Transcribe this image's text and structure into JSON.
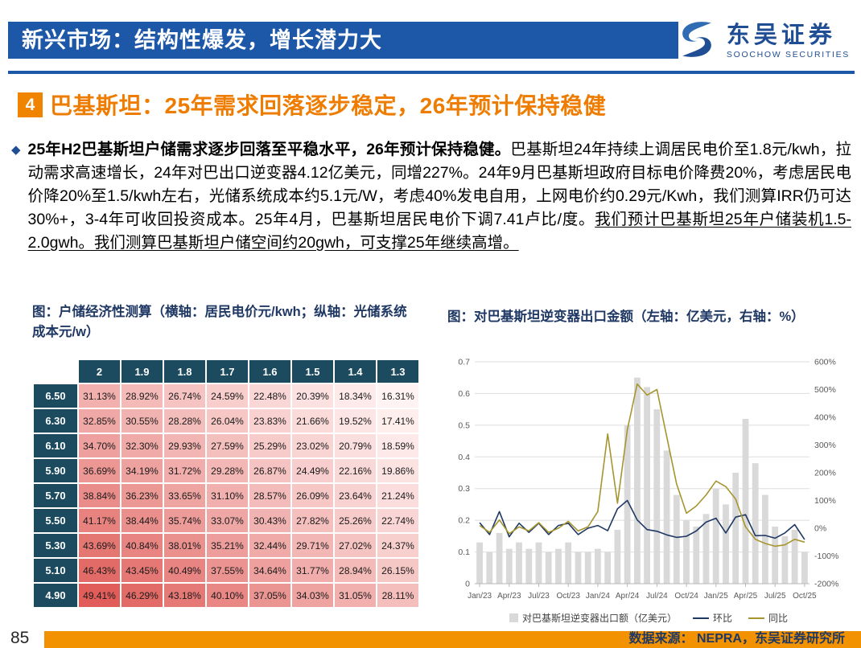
{
  "header": {
    "title": "新兴市场：结构性爆发，增长潜力大",
    "logo": {
      "name": "东吴证券",
      "sub": "SOOCHOW SECURITIES"
    }
  },
  "section": {
    "number": "4",
    "title": "巴基斯坦：25年需求回落逐步稳定，26年预计保持稳健"
  },
  "paragraph": {
    "bullet": "◆",
    "bold": "25年H2巴基斯坦户储需求逐步回落至平稳水平，26年预计保持稳健。",
    "normal": "巴基斯坦24年持续上调居民电价至1.8元/kwh，拉动需求高速增长，24年对巴出口逆变器4.12亿美元，同增227%。24年9月巴基斯坦政府目标电价降费20%，考虑居民电价降20%至1.5/kwh左右，光储系统成本约5.1元/W，考虑40%发电自用，上网电价约0.29元/Kwh，我们测算IRR仍可达30%+，3-4年可收回投资成本。25年4月，巴基斯坦居民电价下调7.41卢比/度。",
    "underlined": "我们预计巴基斯坦25年户储装机1.5-2.0gwh。我们测算巴基斯坦户储空间约20gwh，可支撑25年继续高增。"
  },
  "chart_data": [
    {
      "type": "heatmap",
      "title": "图：户储经济性测算（横轴：居民电价元/kwh；纵轴：光储系统成本元/w）",
      "xlabel": "居民电价元/kwh",
      "ylabel": "光储系统成本元/w",
      "columns": [
        "2",
        "1.9",
        "1.8",
        "1.7",
        "1.6",
        "1.5",
        "1.4",
        "1.3"
      ],
      "rows": [
        "6.50",
        "6.30",
        "6.10",
        "5.90",
        "5.70",
        "5.50",
        "5.30",
        "5.10",
        "4.90"
      ],
      "values": [
        [
          "31.13%",
          "28.92%",
          "26.74%",
          "24.59%",
          "22.48%",
          "20.39%",
          "18.34%",
          "16.31%"
        ],
        [
          "32.85%",
          "30.55%",
          "28.28%",
          "26.04%",
          "23.83%",
          "21.66%",
          "19.52%",
          "17.41%"
        ],
        [
          "34.70%",
          "32.30%",
          "29.93%",
          "27.59%",
          "25.29%",
          "23.02%",
          "20.79%",
          "18.59%"
        ],
        [
          "36.69%",
          "34.19%",
          "31.72%",
          "29.28%",
          "26.87%",
          "24.49%",
          "22.16%",
          "19.86%"
        ],
        [
          "38.84%",
          "36.23%",
          "33.65%",
          "31.10%",
          "28.57%",
          "26.09%",
          "23.64%",
          "21.24%"
        ],
        [
          "41.17%",
          "38.44%",
          "35.74%",
          "33.07%",
          "30.43%",
          "27.82%",
          "25.26%",
          "22.74%"
        ],
        [
          "43.69%",
          "40.84%",
          "38.01%",
          "35.21%",
          "32.44%",
          "29.71%",
          "27.02%",
          "24.37%"
        ],
        [
          "46.43%",
          "43.45%",
          "40.49%",
          "37.55%",
          "34.64%",
          "31.77%",
          "28.94%",
          "26.15%"
        ],
        [
          "49.41%",
          "46.29%",
          "43.18%",
          "40.10%",
          "37.05%",
          "34.03%",
          "31.05%",
          "28.11%"
        ]
      ],
      "colorscale": {
        "low_value": 16,
        "high_value": 50,
        "low_color": "#fff5f4",
        "high_color": "#df5a56"
      }
    },
    {
      "type": "bar+line",
      "title": "图：对巴基斯坦逆变器出口金额（左轴：亿美元，右轴：%）",
      "x": [
        "Jan/23",
        "Feb/23",
        "Mar/23",
        "Apr/23",
        "May/23",
        "Jun/23",
        "Jul/23",
        "Aug/23",
        "Sep/23",
        "Oct/23",
        "Nov/23",
        "Dec/23",
        "Jan/24",
        "Feb/24",
        "Mar/24",
        "Apr/24",
        "May/24",
        "Jun/24",
        "Jul/24",
        "Aug/24",
        "Sep/24",
        "Oct/24",
        "Nov/24",
        "Dec/24",
        "Jan/25",
        "Feb/25",
        "Mar/25",
        "Apr/25",
        "May/25",
        "Jun/25",
        "Jul/25",
        "Aug/25",
        "Sep/25",
        "Oct/25"
      ],
      "x_ticks": [
        "Jan/23",
        "Apr/23",
        "Jul/23",
        "Oct/23",
        "Jan/24",
        "Apr/24",
        "Jul/24",
        "Oct/24",
        "Jan/25",
        "Apr/25",
        "Jul/25",
        "Oct/25"
      ],
      "bar_series": {
        "name": "对巴基斯坦逆变器出口额（亿美元）",
        "color": "#d9d9d9",
        "axis": "left",
        "values": [
          0.13,
          0.1,
          0.16,
          0.11,
          0.13,
          0.11,
          0.13,
          0.1,
          0.11,
          0.13,
          0.1,
          0.1,
          0.11,
          0.1,
          0.17,
          0.5,
          0.65,
          0.62,
          0.55,
          0.42,
          0.28,
          0.2,
          0.18,
          0.22,
          0.3,
          0.25,
          0.35,
          0.52,
          0.38,
          0.28,
          0.18,
          0.15,
          0.17,
          0.1
        ]
      },
      "line_series": [
        {
          "name": "环比",
          "color": "#1f3864",
          "axis": "right",
          "values": [
            20,
            -23,
            60,
            -31,
            18,
            -15,
            18,
            -23,
            10,
            18,
            -23,
            0,
            10,
            -9,
            70,
            100,
            30,
            -5,
            -11,
            -24,
            -33,
            -29,
            -10,
            22,
            36,
            -17,
            40,
            49,
            -27,
            -26,
            -36,
            -17,
            13,
            -41
          ]
        },
        {
          "name": "同比",
          "color": "#a6952f",
          "axis": "right",
          "values": [
            10,
            -15,
            30,
            -20,
            5,
            -10,
            20,
            -15,
            0,
            25,
            -10,
            5,
            60,
            340,
            90,
            355,
            520,
            480,
            500,
            330,
            160,
            54,
            80,
            120,
            170,
            150,
            105,
            5,
            -40,
            -55,
            -65,
            -60,
            -40,
            -50
          ]
        }
      ],
      "left_axis": {
        "min": 0,
        "max": 0.7,
        "step": 0.1
      },
      "right_axis": {
        "min": -200,
        "max": 600,
        "step": 100,
        "suffix": "%"
      },
      "grid": true,
      "legend_position": "bottom"
    }
  ],
  "footer": {
    "page": "85",
    "source": "数据来源： NEPRA，东吴证券研究所"
  }
}
